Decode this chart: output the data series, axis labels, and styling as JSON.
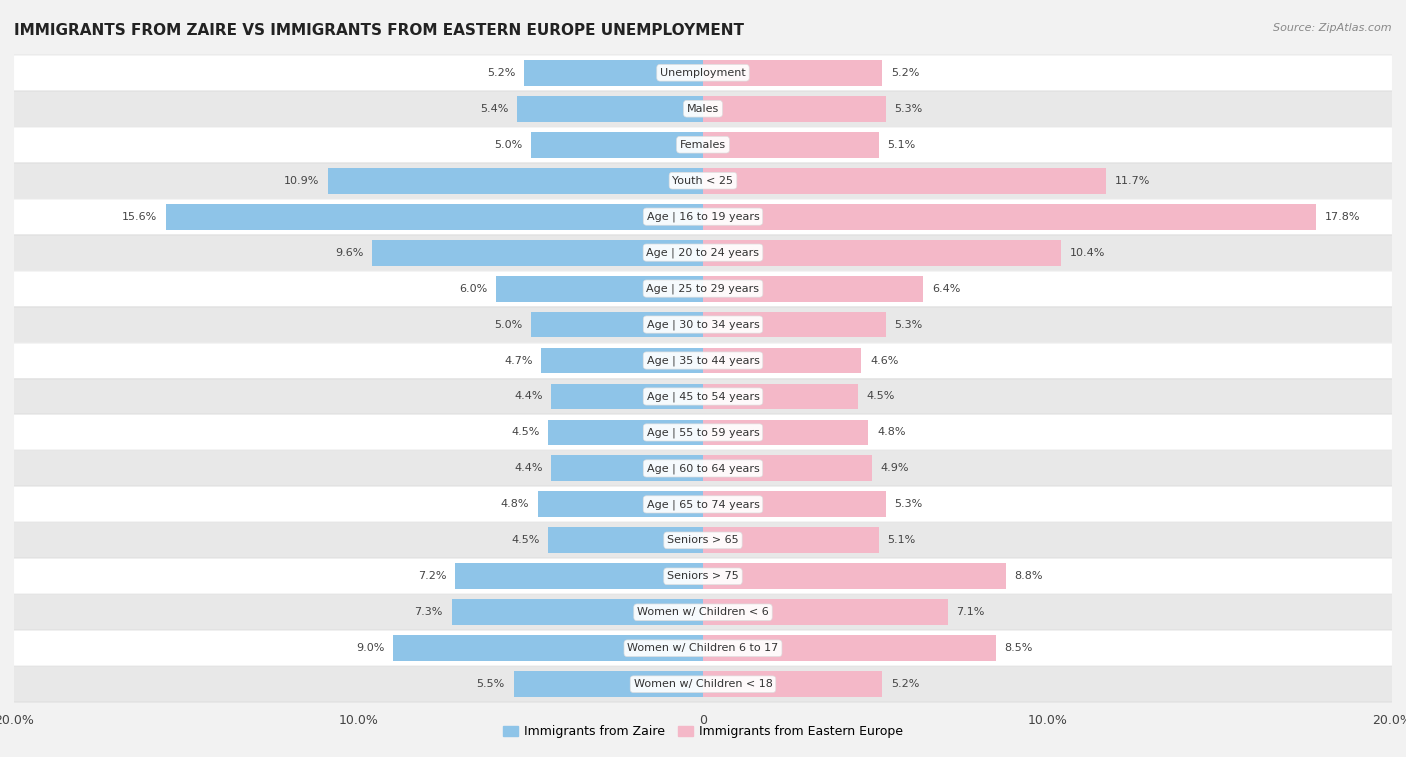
{
  "title": "IMMIGRANTS FROM ZAIRE VS IMMIGRANTS FROM EASTERN EUROPE UNEMPLOYMENT",
  "source": "Source: ZipAtlas.com",
  "categories": [
    "Unemployment",
    "Males",
    "Females",
    "Youth < 25",
    "Age | 16 to 19 years",
    "Age | 20 to 24 years",
    "Age | 25 to 29 years",
    "Age | 30 to 34 years",
    "Age | 35 to 44 years",
    "Age | 45 to 54 years",
    "Age | 55 to 59 years",
    "Age | 60 to 64 years",
    "Age | 65 to 74 years",
    "Seniors > 65",
    "Seniors > 75",
    "Women w/ Children < 6",
    "Women w/ Children 6 to 17",
    "Women w/ Children < 18"
  ],
  "zaire_values": [
    5.2,
    5.4,
    5.0,
    10.9,
    15.6,
    9.6,
    6.0,
    5.0,
    4.7,
    4.4,
    4.5,
    4.4,
    4.8,
    4.5,
    7.2,
    7.3,
    9.0,
    5.5
  ],
  "eastern_europe_values": [
    5.2,
    5.3,
    5.1,
    11.7,
    17.8,
    10.4,
    6.4,
    5.3,
    4.6,
    4.5,
    4.8,
    4.9,
    5.3,
    5.1,
    8.8,
    7.1,
    8.5,
    5.2
  ],
  "zaire_color": "#8ec4e8",
  "eastern_europe_color": "#f4b8c8",
  "background_color": "#f2f2f2",
  "row_light": "#ffffff",
  "row_dark": "#e8e8e8",
  "xlim": 20.0,
  "bar_height": 0.72,
  "legend_labels": [
    "Immigrants from Zaire",
    "Immigrants from Eastern Europe"
  ],
  "title_fontsize": 11,
  "label_fontsize": 8,
  "value_fontsize": 8
}
